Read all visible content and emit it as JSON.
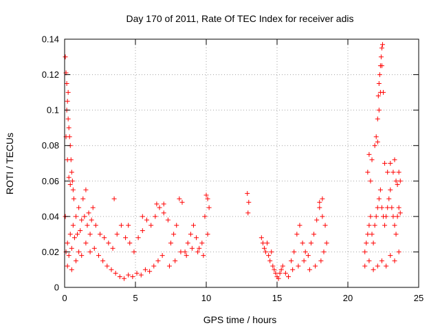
{
  "chart_data": {
    "type": "scatter",
    "title": "Day 170 of 2011, Rate Of TEC Index for receiver adis",
    "xlabel": "GPS time / hours",
    "ylabel": "ROTI / TECUs",
    "xlim": [
      0,
      25
    ],
    "ylim": [
      0,
      0.14
    ],
    "x_ticks": [
      0,
      5,
      10,
      15,
      20,
      25
    ],
    "y_ticks": [
      0,
      0.02,
      0.04,
      0.06,
      0.08,
      0.1,
      0.12,
      0.14
    ],
    "grid": true,
    "marker": "plus",
    "color": "#ff0000",
    "series": [
      {
        "points": [
          [
            0.05,
            0.13
          ],
          [
            0.1,
            0.121
          ],
          [
            0.15,
            0.115
          ],
          [
            0.2,
            0.105
          ],
          [
            0.25,
            0.095
          ],
          [
            0.3,
            0.09
          ],
          [
            0.35,
            0.085
          ],
          [
            0.4,
            0.08
          ],
          [
            0.45,
            0.072
          ],
          [
            0.5,
            0.065
          ],
          [
            0.55,
            0.06
          ],
          [
            0.6,
            0.055
          ],
          [
            0.65,
            0.05
          ],
          [
            0.1,
            0.085
          ],
          [
            0.2,
            0.072
          ],
          [
            0.3,
            0.062
          ],
          [
            0.15,
            0.1
          ],
          [
            0.25,
            0.11
          ],
          [
            0.05,
            0.04
          ],
          [
            0.4,
            0.058
          ],
          [
            0.1,
            0.02
          ],
          [
            0.2,
            0.025
          ],
          [
            0.3,
            0.018
          ],
          [
            0.4,
            0.03
          ],
          [
            0.5,
            0.022
          ],
          [
            0.6,
            0.035
          ],
          [
            0.7,
            0.028
          ],
          [
            0.8,
            0.04
          ],
          [
            0.9,
            0.03
          ],
          [
            1.0,
            0.045
          ],
          [
            1.1,
            0.032
          ],
          [
            1.2,
            0.038
          ],
          [
            1.3,
            0.05
          ],
          [
            1.4,
            0.04
          ],
          [
            1.5,
            0.055
          ],
          [
            1.6,
            0.035
          ],
          [
            1.7,
            0.042
          ],
          [
            1.8,
            0.03
          ],
          [
            1.9,
            0.038
          ],
          [
            2.0,
            0.045
          ],
          [
            0.2,
            0.012
          ],
          [
            0.5,
            0.01
          ],
          [
            0.8,
            0.015
          ],
          [
            1.0,
            0.02
          ],
          [
            1.2,
            0.018
          ],
          [
            1.5,
            0.025
          ],
          [
            1.8,
            0.02
          ],
          [
            2.1,
            0.022
          ],
          [
            2.4,
            0.018
          ],
          [
            2.7,
            0.015
          ],
          [
            3.0,
            0.012
          ],
          [
            3.3,
            0.01
          ],
          [
            3.6,
            0.008
          ],
          [
            3.9,
            0.006
          ],
          [
            4.2,
            0.005
          ],
          [
            4.5,
            0.007
          ],
          [
            4.8,
            0.006
          ],
          [
            5.1,
            0.008
          ],
          [
            5.4,
            0.007
          ],
          [
            5.7,
            0.01
          ],
          [
            6.0,
            0.009
          ],
          [
            6.3,
            0.012
          ],
          [
            6.6,
            0.015
          ],
          [
            6.9,
            0.018
          ],
          [
            2.2,
            0.035
          ],
          [
            2.5,
            0.03
          ],
          [
            2.8,
            0.028
          ],
          [
            3.1,
            0.025
          ],
          [
            3.4,
            0.022
          ],
          [
            3.7,
            0.03
          ],
          [
            4.0,
            0.035
          ],
          [
            4.3,
            0.028
          ],
          [
            4.6,
            0.025
          ],
          [
            4.9,
            0.02
          ],
          [
            5.2,
            0.028
          ],
          [
            5.5,
            0.032
          ],
          [
            5.8,
            0.038
          ],
          [
            6.1,
            0.035
          ],
          [
            6.4,
            0.04
          ],
          [
            6.7,
            0.045
          ],
          [
            7.0,
            0.042
          ],
          [
            7.3,
            0.038
          ],
          [
            3.5,
            0.05
          ],
          [
            4.5,
            0.035
          ],
          [
            5.5,
            0.04
          ],
          [
            6.5,
            0.047
          ],
          [
            7.0,
            0.047
          ],
          [
            7.5,
            0.025
          ],
          [
            7.7,
            0.03
          ],
          [
            7.9,
            0.035
          ],
          [
            8.1,
            0.05
          ],
          [
            8.3,
            0.048
          ],
          [
            8.5,
            0.02
          ],
          [
            8.7,
            0.025
          ],
          [
            8.9,
            0.03
          ],
          [
            9.1,
            0.035
          ],
          [
            9.3,
            0.028
          ],
          [
            9.5,
            0.022
          ],
          [
            9.7,
            0.025
          ],
          [
            9.9,
            0.04
          ],
          [
            10.0,
            0.052
          ],
          [
            10.1,
            0.05
          ],
          [
            10.2,
            0.045
          ],
          [
            7.4,
            0.012
          ],
          [
            7.8,
            0.015
          ],
          [
            8.2,
            0.02
          ],
          [
            8.6,
            0.018
          ],
          [
            9.0,
            0.022
          ],
          [
            9.4,
            0.02
          ],
          [
            9.8,
            0.018
          ],
          [
            10.1,
            0.03
          ],
          [
            12.9,
            0.053
          ],
          [
            12.95,
            0.042
          ],
          [
            13.0,
            0.048
          ],
          [
            13.9,
            0.028
          ],
          [
            14.0,
            0.025
          ],
          [
            14.1,
            0.022
          ],
          [
            14.2,
            0.02
          ],
          [
            14.3,
            0.025
          ],
          [
            14.4,
            0.018
          ],
          [
            14.5,
            0.015
          ],
          [
            14.6,
            0.02
          ],
          [
            14.7,
            0.012
          ],
          [
            14.8,
            0.01
          ],
          [
            14.9,
            0.008
          ],
          [
            15.0,
            0.006
          ],
          [
            15.1,
            0.005
          ],
          [
            15.2,
            0.008
          ],
          [
            15.3,
            0.01
          ],
          [
            15.4,
            0.012
          ],
          [
            15.6,
            0.008
          ],
          [
            15.8,
            0.006
          ],
          [
            16.0,
            0.015
          ],
          [
            16.2,
            0.02
          ],
          [
            16.4,
            0.03
          ],
          [
            16.6,
            0.035
          ],
          [
            16.8,
            0.025
          ],
          [
            17.0,
            0.02
          ],
          [
            17.2,
            0.018
          ],
          [
            17.4,
            0.025
          ],
          [
            17.6,
            0.03
          ],
          [
            17.8,
            0.038
          ],
          [
            18.0,
            0.045
          ],
          [
            18.2,
            0.04
          ],
          [
            18.4,
            0.035
          ],
          [
            18.5,
            0.025
          ],
          [
            16.1,
            0.01
          ],
          [
            16.5,
            0.012
          ],
          [
            16.9,
            0.015
          ],
          [
            17.3,
            0.01
          ],
          [
            17.7,
            0.012
          ],
          [
            18.1,
            0.015
          ],
          [
            18.3,
            0.02
          ],
          [
            18.0,
            0.048
          ],
          [
            18.2,
            0.05
          ],
          [
            21.2,
            0.02
          ],
          [
            21.3,
            0.025
          ],
          [
            21.4,
            0.03
          ],
          [
            21.5,
            0.035
          ],
          [
            21.6,
            0.04
          ],
          [
            21.7,
            0.03
          ],
          [
            21.8,
            0.025
          ],
          [
            21.9,
            0.035
          ],
          [
            22.0,
            0.04
          ],
          [
            22.1,
            0.045
          ],
          [
            22.2,
            0.05
          ],
          [
            22.3,
            0.055
          ],
          [
            22.4,
            0.045
          ],
          [
            22.5,
            0.04
          ],
          [
            22.6,
            0.035
          ],
          [
            22.7,
            0.04
          ],
          [
            22.8,
            0.045
          ],
          [
            22.9,
            0.05
          ],
          [
            23.0,
            0.055
          ],
          [
            23.1,
            0.045
          ],
          [
            23.2,
            0.04
          ],
          [
            23.3,
            0.035
          ],
          [
            23.4,
            0.03
          ],
          [
            23.5,
            0.04
          ],
          [
            23.6,
            0.045
          ],
          [
            23.7,
            0.042
          ],
          [
            21.2,
            0.012
          ],
          [
            21.5,
            0.015
          ],
          [
            21.8,
            0.01
          ],
          [
            22.1,
            0.012
          ],
          [
            22.4,
            0.015
          ],
          [
            22.7,
            0.012
          ],
          [
            23.0,
            0.018
          ],
          [
            23.3,
            0.015
          ],
          [
            23.6,
            0.02
          ],
          [
            21.5,
            0.075
          ],
          [
            21.7,
            0.072
          ],
          [
            21.9,
            0.08
          ],
          [
            22.0,
            0.085
          ],
          [
            22.1,
            0.095
          ],
          [
            22.15,
            0.108
          ],
          [
            22.2,
            0.115
          ],
          [
            22.25,
            0.12
          ],
          [
            22.3,
            0.125
          ],
          [
            22.35,
            0.13
          ],
          [
            22.4,
            0.135
          ],
          [
            22.45,
            0.137
          ],
          [
            22.3,
            0.11
          ],
          [
            22.2,
            0.1
          ],
          [
            22.1,
            0.082
          ],
          [
            22.5,
            0.11
          ],
          [
            22.4,
            0.125
          ],
          [
            21.4,
            0.065
          ],
          [
            21.6,
            0.06
          ],
          [
            22.6,
            0.07
          ],
          [
            22.8,
            0.065
          ],
          [
            23.0,
            0.07
          ],
          [
            23.2,
            0.065
          ],
          [
            23.3,
            0.072
          ],
          [
            23.4,
            0.06
          ],
          [
            23.5,
            0.058
          ],
          [
            23.6,
            0.065
          ],
          [
            23.7,
            0.06
          ]
        ]
      }
    ]
  }
}
